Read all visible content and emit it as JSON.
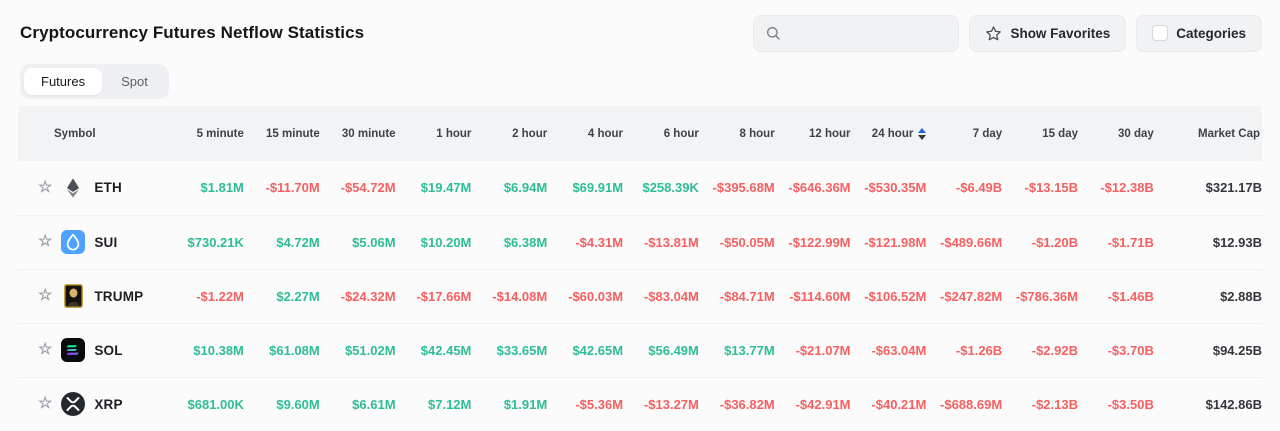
{
  "header": {
    "title": "Cryptocurrency Futures Netflow Statistics",
    "search_placeholder": "",
    "show_favorites_label": "Show Favorites",
    "categories_label": "Categories"
  },
  "tabs": [
    {
      "label": "Futures",
      "active": true
    },
    {
      "label": "Spot",
      "active": false
    }
  ],
  "colors": {
    "positive": "#2ebd96",
    "negative": "#f56060",
    "neutral": "#33363b",
    "sort_active_arrow": "#2264e5"
  },
  "table": {
    "columns": [
      "Symbol",
      "5 minute",
      "15 minute",
      "30 minute",
      "1 hour",
      "2 hour",
      "4 hour",
      "6 hour",
      "8 hour",
      "12 hour",
      "24 hour",
      "7 day",
      "15 day",
      "30 day",
      "Market Cap"
    ],
    "sort_column_index": 10,
    "rows": [
      {
        "symbol": "ETH",
        "icon": "eth",
        "values": [
          "$1.81M",
          "-$11.70M",
          "-$54.72M",
          "$19.47M",
          "$6.94M",
          "$69.91M",
          "$258.39K",
          "-$395.68M",
          "-$646.36M",
          "-$530.35M",
          "-$6.49B",
          "-$13.15B",
          "-$12.38B"
        ],
        "market_cap": "$321.17B"
      },
      {
        "symbol": "SUI",
        "icon": "sui",
        "values": [
          "$730.21K",
          "$4.72M",
          "$5.06M",
          "$10.20M",
          "$6.38M",
          "-$4.31M",
          "-$13.81M",
          "-$50.05M",
          "-$122.99M",
          "-$121.98M",
          "-$489.66M",
          "-$1.20B",
          "-$1.71B"
        ],
        "market_cap": "$12.93B"
      },
      {
        "symbol": "TRUMP",
        "icon": "trump",
        "values": [
          "-$1.22M",
          "$2.27M",
          "-$24.32M",
          "-$17.66M",
          "-$14.08M",
          "-$60.03M",
          "-$83.04M",
          "-$84.71M",
          "-$114.60M",
          "-$106.52M",
          "-$247.82M",
          "-$786.36M",
          "-$1.46B"
        ],
        "market_cap": "$2.88B"
      },
      {
        "symbol": "SOL",
        "icon": "sol",
        "values": [
          "$10.38M",
          "$61.08M",
          "$51.02M",
          "$42.45M",
          "$33.65M",
          "$42.65M",
          "$56.49M",
          "$13.77M",
          "-$21.07M",
          "-$63.04M",
          "-$1.26B",
          "-$2.92B",
          "-$3.70B"
        ],
        "market_cap": "$94.25B"
      },
      {
        "symbol": "XRP",
        "icon": "xrp",
        "values": [
          "$681.00K",
          "$9.60M",
          "$6.61M",
          "$7.12M",
          "$1.91M",
          "-$5.36M",
          "-$13.27M",
          "-$36.82M",
          "-$42.91M",
          "-$40.21M",
          "-$688.69M",
          "-$2.13B",
          "-$3.50B"
        ],
        "market_cap": "$142.86B"
      }
    ]
  }
}
